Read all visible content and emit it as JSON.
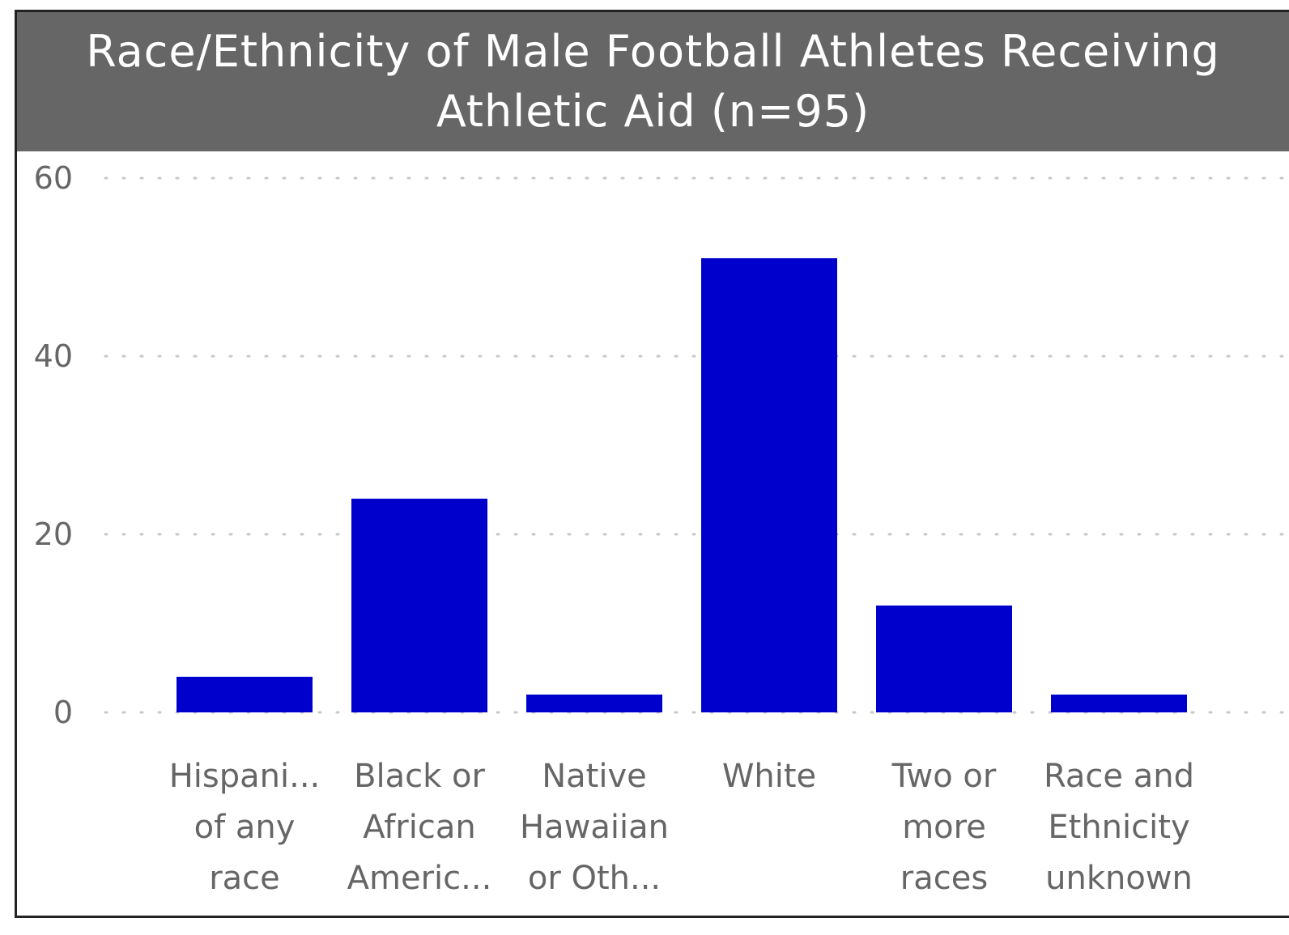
{
  "chart_data": {
    "type": "bar",
    "title": "Race/Ethnicity of Male Football Athletes Receiving Athletic Aid (n=95)",
    "xlabel": "",
    "ylabel": "",
    "categories": [
      [
        "Hispani...",
        "of any",
        "race"
      ],
      [
        "Black or",
        "African",
        "Americ..."
      ],
      [
        "Native",
        "Hawaiian",
        "or Oth..."
      ],
      [
        "White"
      ],
      [
        "Two or",
        "more",
        "races"
      ],
      [
        "Race and",
        "Ethnicity",
        "unknown"
      ]
    ],
    "values": [
      4,
      24,
      2,
      51,
      12,
      2
    ],
    "ylim": [
      0,
      60
    ],
    "yticks": [
      "0",
      "20",
      "40",
      "60"
    ],
    "grid": true,
    "legend": "none",
    "colors": {
      "bar": "#0000CC",
      "title_bg": "#666666",
      "title_text": "#FFFFFF",
      "grid": "#C8C8C8",
      "labels": "#666666"
    }
  }
}
